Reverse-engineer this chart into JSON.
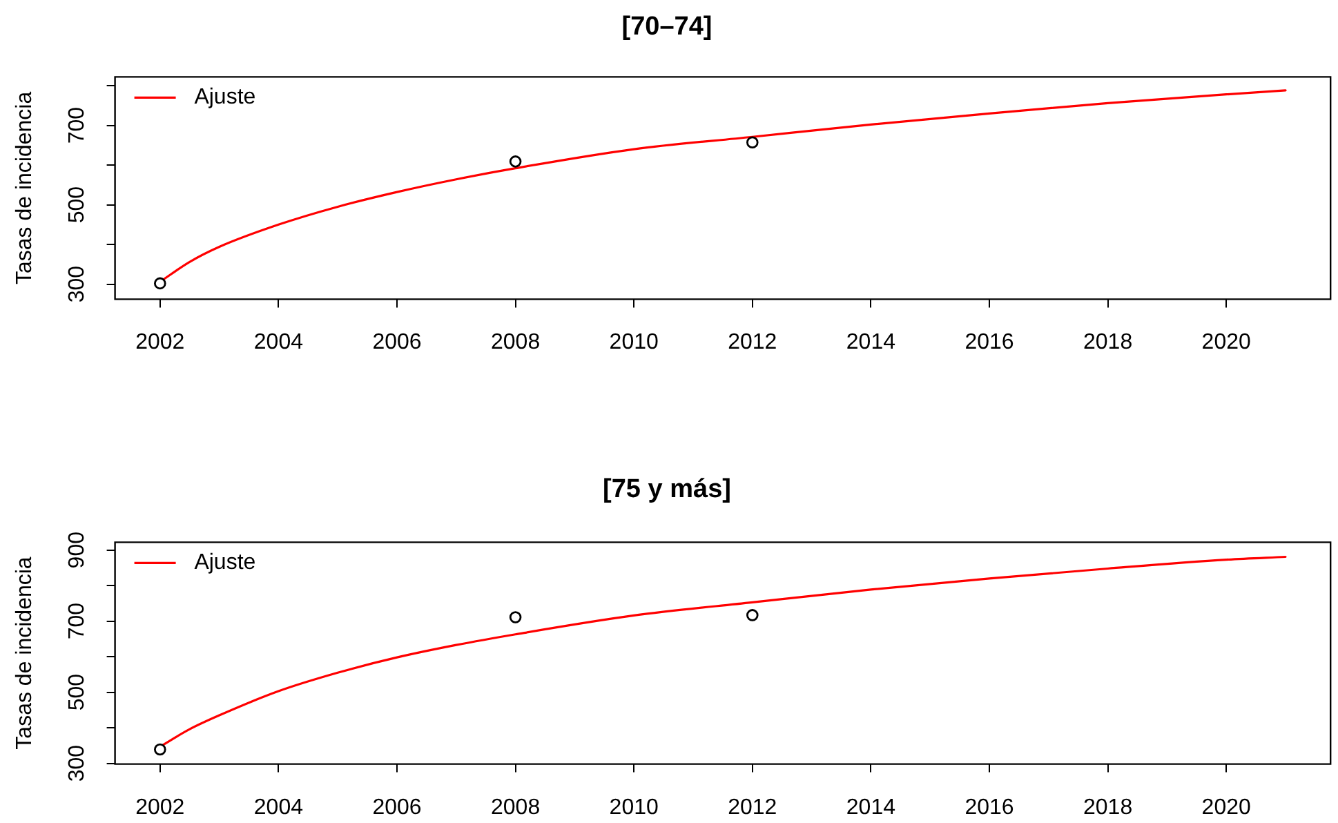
{
  "chart_data": [
    {
      "type": "line",
      "title": "[70–74]",
      "ylabel": "Tasas de incidencia",
      "xlim": [
        2001.24,
        2021.76
      ],
      "xticks": [
        2002,
        2004,
        2006,
        2008,
        2010,
        2012,
        2014,
        2016,
        2018,
        2020
      ],
      "ylim": [
        262,
        822
      ],
      "yticks": [
        300,
        {
          "value": 400,
          "label": null
        },
        500,
        {
          "value": 600,
          "label": null
        },
        700,
        {
          "value": 800,
          "label": null
        }
      ],
      "grid": false,
      "legend": "top left",
      "series": [
        {
          "type": "scatter",
          "x": [
            2002,
            2008,
            2012
          ],
          "values": [
            302,
            609,
            657
          ],
          "color": "#000000",
          "marker": "circle"
        },
        {
          "name": "Ajuste",
          "x": [
            2002,
            2002.5,
            2003,
            2004,
            2005,
            2006,
            2007,
            2008,
            2010,
            2012,
            2014,
            2016,
            2018,
            2020,
            2021
          ],
          "values": [
            306,
            356,
            394,
            450,
            495,
            532,
            564,
            592,
            640,
            671,
            702,
            730,
            756,
            778,
            788
          ],
          "color": "#ff0000",
          "marker": "none",
          "line_style": "solid"
        }
      ]
    },
    {
      "type": "line",
      "title": "[75 y más]",
      "ylabel": "Tasas de incidencia",
      "xlim": [
        2001.24,
        2021.76
      ],
      "xticks": [
        2002,
        2004,
        2006,
        2008,
        2010,
        2012,
        2014,
        2016,
        2018,
        2020
      ],
      "ylim": [
        298,
        922
      ],
      "yticks": [
        300,
        {
          "value": 400,
          "label": null
        },
        500,
        {
          "value": 600,
          "label": null
        },
        700,
        {
          "value": 800,
          "label": null
        },
        900
      ],
      "grid": false,
      "legend": "top left",
      "series": [
        {
          "type": "scatter",
          "x": [
            2002,
            2008,
            2012
          ],
          "values": [
            339,
            711,
            717
          ],
          "color": "#000000",
          "marker": "circle"
        },
        {
          "name": "Ajuste",
          "x": [
            2002,
            2002.5,
            2003,
            2004,
            2005,
            2006,
            2007,
            2008,
            2010,
            2012,
            2014,
            2016,
            2018,
            2020,
            2021
          ],
          "values": [
            347,
            396,
            435,
            503,
            555,
            598,
            633,
            663,
            716,
            753,
            789,
            820,
            848,
            873,
            881
          ],
          "color": "#ff0000",
          "marker": "none",
          "line_style": "solid"
        }
      ]
    }
  ]
}
